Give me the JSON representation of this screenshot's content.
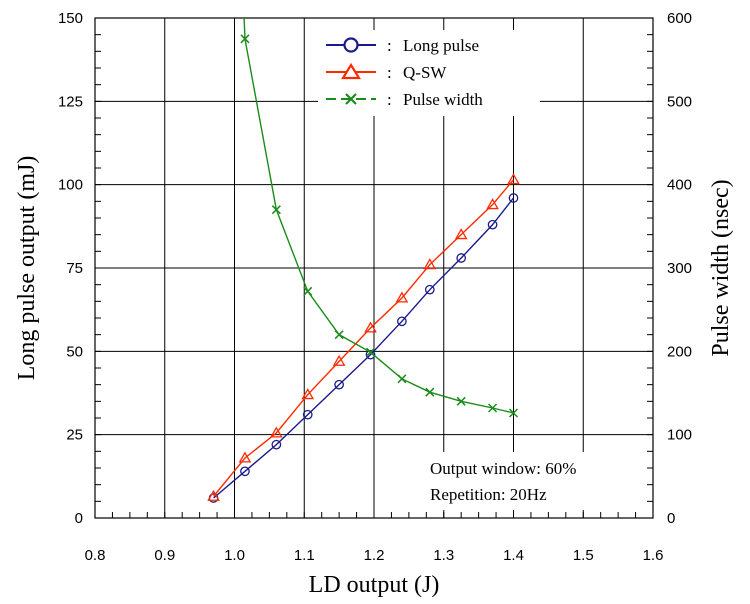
{
  "chart_data": {
    "type": "line",
    "xlabel": "LD output (J)",
    "ylabel": "Long pulse output (mJ)",
    "y2label": "Pulse width (nsec)",
    "xlim": [
      0.8,
      1.6
    ],
    "ylim": [
      0,
      150
    ],
    "y2lim": [
      0,
      600
    ],
    "x_ticks": [
      "0.8",
      "0.9",
      "1.0",
      "1.1",
      "1.2",
      "1.3",
      "1.4",
      "1.5",
      "1.6"
    ],
    "y_ticks": [
      "0",
      "25",
      "50",
      "75",
      "100",
      "125",
      "150"
    ],
    "y2_ticks": [
      "0",
      "100",
      "200",
      "300",
      "400",
      "500",
      "600"
    ],
    "grid": true,
    "legend_position": "top-center",
    "legend_sep": ":",
    "series": [
      {
        "name": "Long pulse",
        "axis": "left",
        "color": "#1a1a8c",
        "marker": "circle",
        "x": [
          0.97,
          1.015,
          1.06,
          1.105,
          1.15,
          1.195,
          1.24,
          1.28,
          1.325,
          1.37,
          1.4
        ],
        "y": [
          6,
          14,
          22,
          31,
          40,
          49,
          59,
          68.5,
          78,
          88,
          96
        ]
      },
      {
        "name": "Q-SW",
        "axis": "left",
        "color": "#ff2a00",
        "marker": "triangle",
        "x": [
          0.97,
          1.015,
          1.06,
          1.105,
          1.15,
          1.195,
          1.24,
          1.28,
          1.325,
          1.37,
          1.4
        ],
        "y": [
          6.5,
          18,
          25.5,
          37,
          47,
          57,
          66,
          76,
          85,
          94,
          101.5
        ]
      },
      {
        "name": "Pulse width",
        "axis": "right",
        "color": "#1a8c1a",
        "marker": "x",
        "x": [
          1.015,
          1.06,
          1.105,
          1.15,
          1.195,
          1.24,
          1.28,
          1.325,
          1.37,
          1.4
        ],
        "y": [
          575,
          370,
          272,
          220,
          199,
          167,
          151,
          140,
          132,
          126
        ],
        "extends_above_axis": true
      }
    ],
    "annotations": [
      "Output window: 60%",
      "Repetition: 20Hz"
    ]
  }
}
